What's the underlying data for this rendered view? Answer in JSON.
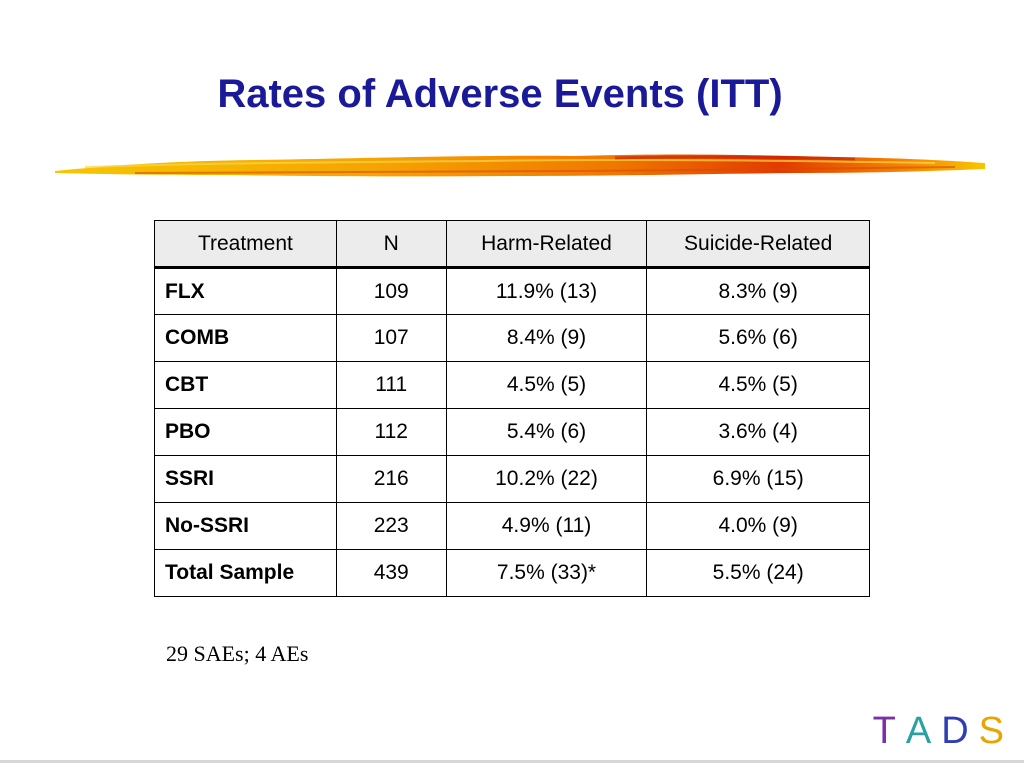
{
  "slide": {
    "title": "Rates of Adverse Events (ITT)",
    "footnote": "29 SAEs; 4 AEs"
  },
  "table": {
    "headers": [
      "Treatment",
      "N",
      "Harm-Related",
      "Suicide-Related"
    ],
    "rows": [
      {
        "treatment": "FLX",
        "n": "109",
        "harm": "11.9% (13)",
        "suicide": "8.3% (9)"
      },
      {
        "treatment": "COMB",
        "n": "107",
        "harm": "8.4% (9)",
        "suicide": "5.6% (6)"
      },
      {
        "treatment": "CBT",
        "n": "111",
        "harm": "4.5% (5)",
        "suicide": "4.5% (5)"
      },
      {
        "treatment": "PBO",
        "n": "112",
        "harm": "5.4% (6)",
        "suicide": "3.6% (4)"
      },
      {
        "treatment": "SSRI",
        "n": "216",
        "harm": "10.2% (22)",
        "suicide": "6.9% (15)"
      },
      {
        "treatment": "No-SSRI",
        "n": "223",
        "harm": "4.9% (11)",
        "suicide": "4.0% (9)"
      },
      {
        "treatment": "Total Sample",
        "n": "439",
        "harm": "7.5% (33)*",
        "suicide": "5.5% (24)"
      }
    ]
  },
  "logo": {
    "letters": [
      {
        "char": "T",
        "color": "#7b2fa8"
      },
      {
        "char": "A",
        "color": "#2aa1a1"
      },
      {
        "char": "D",
        "color": "#2f3fb3"
      },
      {
        "char": "S",
        "color": "#e8a400"
      }
    ]
  },
  "colors": {
    "title": "#1a1a99",
    "rule_gold": "#f5b800",
    "rule_red": "#e23a00"
  }
}
